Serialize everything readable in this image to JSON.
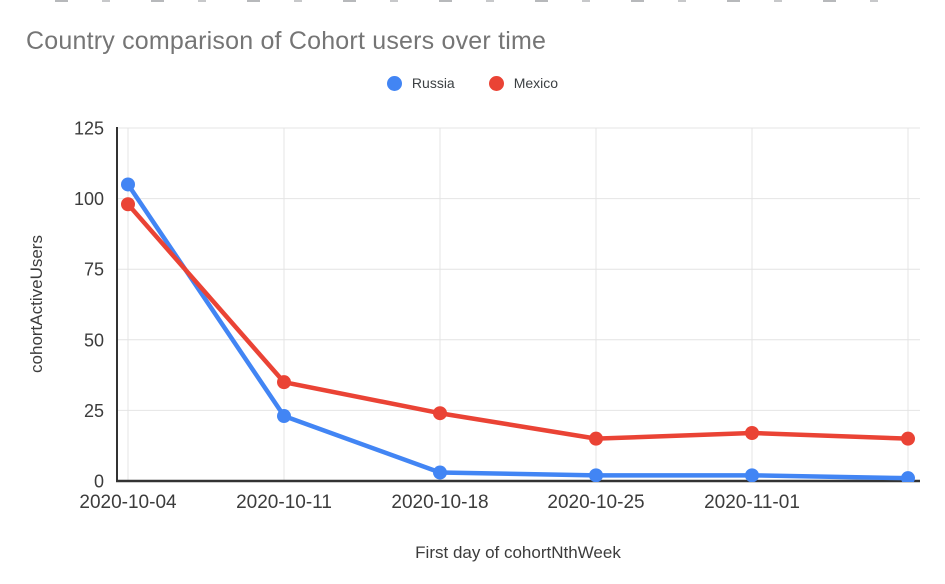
{
  "chart_data": {
    "type": "line",
    "title": "Country comparison of Cohort users over time",
    "xlabel": "First day of cohortNthWeek",
    "ylabel": "cohortActiveUsers",
    "categories": [
      "2020-10-04",
      "2020-10-11",
      "2020-10-18",
      "2020-10-25",
      "2020-11-01",
      ""
    ],
    "series": [
      {
        "name": "Russia",
        "color": "#4285F4",
        "values": [
          105,
          23,
          3,
          2,
          2,
          1
        ]
      },
      {
        "name": "Mexico",
        "color": "#EA4335",
        "values": [
          98,
          35,
          24,
          15,
          17,
          15
        ]
      }
    ],
    "ylim": [
      0,
      125
    ],
    "yticks": [
      0,
      25,
      50,
      75,
      100,
      125
    ],
    "grid": true,
    "legend_position": "top-center",
    "marker": "circle",
    "line_width": 4.5,
    "marker_radius": 7
  },
  "style": {
    "background": "#ffffff",
    "title_color": "#757575",
    "axis_text_color": "#3c3c3c",
    "axis_line_color": "#333333",
    "gridline_color": "#e4e4e4",
    "legend_text_color": "#3c4043"
  }
}
